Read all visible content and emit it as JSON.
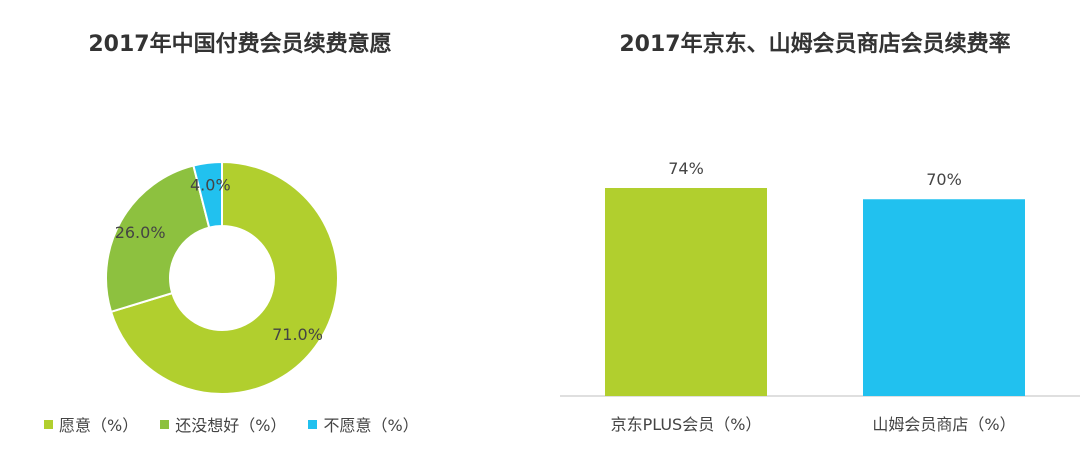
{
  "chart_data": [
    {
      "type": "pie",
      "title": "2017年中国付费会员续费意愿",
      "slices": [
        {
          "label": "愿意（%）",
          "value": 71.0,
          "display": "71.0%",
          "color": "#b1cf2e"
        },
        {
          "label": "还没想好（%）",
          "value": 26.0,
          "display": "26.0%",
          "color": "#8dc13f"
        },
        {
          "label": "不愿意（%）",
          "value": 4.0,
          "display": "4.0%",
          "color": "#21c1ef"
        }
      ],
      "legend_position": "bottom"
    },
    {
      "type": "bar",
      "title": "2017年京东、山姆会员商店会员续费率",
      "categories": [
        "京东PLUS会员（%）",
        "山姆会员商店（%）"
      ],
      "values": [
        74,
        70
      ],
      "labels": [
        "74%",
        "70%"
      ],
      "colors": [
        "#b1cf2e",
        "#21c1ef"
      ],
      "ylim": [
        0,
        100
      ]
    }
  ]
}
